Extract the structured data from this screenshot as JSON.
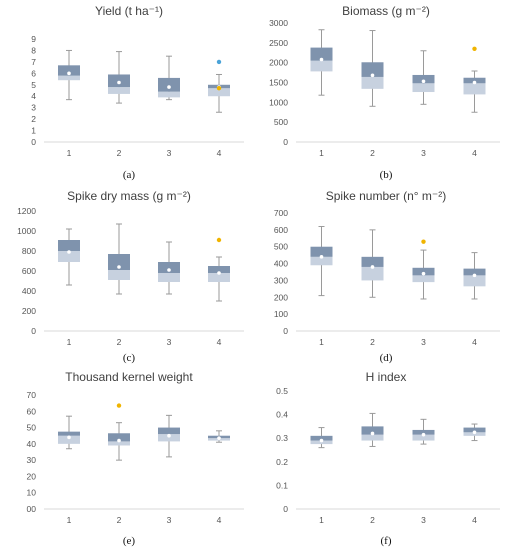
{
  "colors": {
    "box_upper": "#7f93ad",
    "box_lower": "#c7d1df",
    "whisker": "#9a9a9a",
    "mean": "#ffffff",
    "outlier_yellow": "#f0b400",
    "outlier_blue": "#4aa3d8",
    "axis": "#d9d9d9"
  },
  "chart_data": [
    {
      "type": "box",
      "title": "Yield (t ha⁻¹)",
      "panel_label": "(a)",
      "categories": [
        "1",
        "2",
        "3",
        "4"
      ],
      "ylim": [
        0,
        9
      ],
      "yticks": [
        0,
        1,
        2,
        3,
        4,
        5,
        6,
        7,
        8,
        9
      ],
      "boxes": [
        {
          "category": "1",
          "min": 3.7,
          "q1": 5.4,
          "median": 5.8,
          "q3": 6.7,
          "max": 8.0,
          "mean": 6.0
        },
        {
          "category": "2",
          "min": 3.4,
          "q1": 4.2,
          "median": 4.8,
          "q3": 5.9,
          "max": 7.9,
          "mean": 5.2
        },
        {
          "category": "3",
          "min": 3.7,
          "q1": 3.9,
          "median": 4.4,
          "q3": 5.6,
          "max": 7.5,
          "mean": 4.8
        },
        {
          "category": "4",
          "min": 2.6,
          "q1": 4.0,
          "median": 4.7,
          "q3": 5.0,
          "max": 5.9,
          "mean": 4.8
        }
      ],
      "outliers": [
        {
          "category": "4",
          "value": 7.0,
          "color": "blue"
        },
        {
          "category": "4",
          "value": 4.7,
          "color": "yellow"
        }
      ]
    },
    {
      "type": "box",
      "title": "Biomass (g m⁻²)",
      "panel_label": "(b)",
      "categories": [
        "1",
        "2",
        "3",
        "4"
      ],
      "ylim": [
        0,
        3000
      ],
      "yticks": [
        0,
        500,
        1000,
        1500,
        2000,
        2500,
        3000
      ],
      "boxes": [
        {
          "category": "1",
          "min": 1180,
          "q1": 1780,
          "median": 2050,
          "q3": 2380,
          "max": 2830,
          "mean": 2080
        },
        {
          "category": "2",
          "min": 900,
          "q1": 1340,
          "median": 1640,
          "q3": 2010,
          "max": 2810,
          "mean": 1680
        },
        {
          "category": "3",
          "min": 950,
          "q1": 1260,
          "median": 1480,
          "q3": 1690,
          "max": 2300,
          "mean": 1530
        },
        {
          "category": "4",
          "min": 750,
          "q1": 1200,
          "median": 1480,
          "q3": 1620,
          "max": 1790,
          "mean": 1500
        }
      ],
      "outliers": [
        {
          "category": "4",
          "value": 2350,
          "color": "yellow"
        }
      ]
    },
    {
      "type": "box",
      "title": "Spike dry mass (g m⁻²)",
      "panel_label": "(c)",
      "categories": [
        "1",
        "2",
        "3",
        "4"
      ],
      "ylim": [
        0,
        1200
      ],
      "yticks": [
        0,
        200,
        400,
        600,
        800,
        1000,
        1200
      ],
      "boxes": [
        {
          "category": "1",
          "min": 460,
          "q1": 690,
          "median": 800,
          "q3": 910,
          "max": 1020,
          "mean": 790
        },
        {
          "category": "2",
          "min": 370,
          "q1": 510,
          "median": 610,
          "q3": 770,
          "max": 1070,
          "mean": 640
        },
        {
          "category": "3",
          "min": 370,
          "q1": 490,
          "median": 580,
          "q3": 690,
          "max": 890,
          "mean": 610
        },
        {
          "category": "4",
          "min": 300,
          "q1": 490,
          "median": 580,
          "q3": 650,
          "max": 740,
          "mean": 580
        }
      ],
      "outliers": [
        {
          "category": "4",
          "value": 910,
          "color": "yellow"
        }
      ]
    },
    {
      "type": "box",
      "title": "Spike number (n° m⁻²)",
      "panel_label": "(d)",
      "categories": [
        "1",
        "2",
        "3",
        "4"
      ],
      "ylim": [
        0,
        700
      ],
      "yticks": [
        0,
        100,
        200,
        300,
        400,
        500,
        600,
        700
      ],
      "boxes": [
        {
          "category": "1",
          "min": 210,
          "q1": 390,
          "median": 440,
          "q3": 500,
          "max": 620,
          "mean": 440
        },
        {
          "category": "2",
          "min": 200,
          "q1": 300,
          "median": 380,
          "q3": 440,
          "max": 600,
          "mean": 380
        },
        {
          "category": "3",
          "min": 190,
          "q1": 290,
          "median": 330,
          "q3": 375,
          "max": 480,
          "mean": 340
        },
        {
          "category": "4",
          "min": 190,
          "q1": 265,
          "median": 330,
          "q3": 370,
          "max": 465,
          "mean": 330
        }
      ],
      "outliers": [
        {
          "category": "3",
          "value": 530,
          "color": "yellow"
        }
      ]
    },
    {
      "type": "box",
      "title": "Thousand kernel weight",
      "panel_label": "(e)",
      "categories": [
        "1",
        "2",
        "3",
        "4"
      ],
      "ylim": [
        0,
        70
      ],
      "yticks": [
        0,
        10,
        20,
        30,
        40,
        50,
        60,
        70
      ],
      "ytick_labels": [
        "00",
        "10",
        "20",
        "30",
        "40",
        "50",
        "60",
        "70"
      ],
      "boxes": [
        {
          "category": "1",
          "min": 37,
          "q1": 40,
          "median": 45,
          "q3": 47.5,
          "max": 57,
          "mean": 44
        },
        {
          "category": "2",
          "min": 30,
          "q1": 39,
          "median": 41.5,
          "q3": 46.5,
          "max": 53,
          "mean": 42
        },
        {
          "category": "3",
          "min": 32,
          "q1": 41.5,
          "median": 46,
          "q3": 50,
          "max": 57.5,
          "mean": 45
        },
        {
          "category": "4",
          "min": 41,
          "q1": 42,
          "median": 43.5,
          "q3": 45,
          "max": 48,
          "mean": 43.5
        }
      ],
      "outliers": [
        {
          "category": "2",
          "value": 63.5,
          "color": "yellow"
        }
      ]
    },
    {
      "type": "box",
      "title": "H index",
      "panel_label": "(f)",
      "categories": [
        "1",
        "2",
        "3",
        "4"
      ],
      "ylim": [
        0,
        0.5
      ],
      "yticks": [
        0,
        0.1,
        0.2,
        0.3,
        0.4,
        0.5
      ],
      "ytick_labels": [
        "0",
        "0.1",
        "0.2",
        "0.3",
        "0.4",
        "0.5"
      ],
      "boxes": [
        {
          "category": "1",
          "min": 0.26,
          "q1": 0.275,
          "median": 0.29,
          "q3": 0.31,
          "max": 0.345,
          "mean": 0.29
        },
        {
          "category": "2",
          "min": 0.265,
          "q1": 0.29,
          "median": 0.315,
          "q3": 0.35,
          "max": 0.405,
          "mean": 0.32
        },
        {
          "category": "3",
          "min": 0.275,
          "q1": 0.29,
          "median": 0.315,
          "q3": 0.335,
          "max": 0.38,
          "mean": 0.315
        },
        {
          "category": "4",
          "min": 0.29,
          "q1": 0.31,
          "median": 0.325,
          "q3": 0.345,
          "max": 0.36,
          "mean": 0.325
        }
      ],
      "outliers": []
    }
  ]
}
